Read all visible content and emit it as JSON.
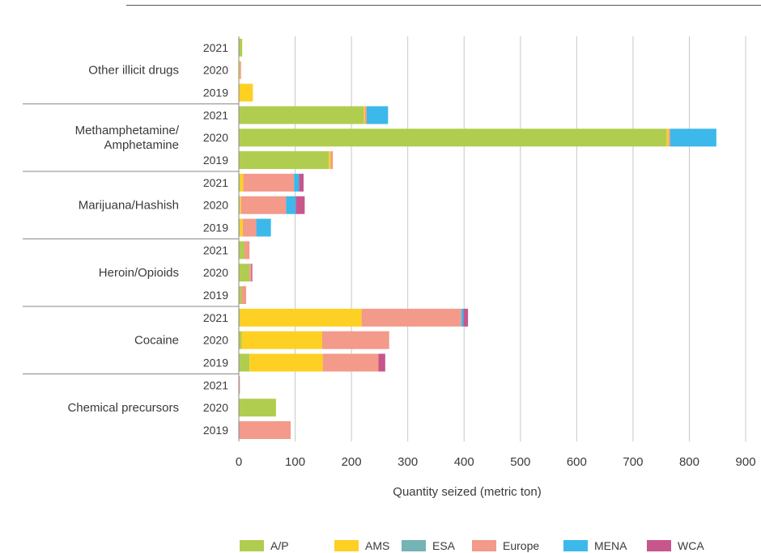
{
  "chart_data": {
    "type": "bar",
    "orientation": "horizontal",
    "stacked": true,
    "title": "",
    "xlabel": "Quantity seized (metric ton)",
    "xlim": [
      0,
      900
    ],
    "xticks": [
      0,
      100,
      200,
      300,
      400,
      500,
      600,
      700,
      800,
      900
    ],
    "grid": true,
    "legend_position": "bottom",
    "series_names": [
      "A/P",
      "AMS",
      "ESA",
      "Europe",
      "MENA",
      "WCA"
    ],
    "series_colors": [
      "#b1cd4f",
      "#fdd023",
      "#74b3b6",
      "#f39a8a",
      "#3db8ea",
      "#c7568c"
    ],
    "groups": [
      {
        "label": [
          "Other illicit drugs"
        ],
        "rows": [
          {
            "year": "2021",
            "values": [
              6,
              0,
              0,
              0,
              0,
              0
            ]
          },
          {
            "year": "2020",
            "values": [
              0,
              2,
              0,
              2,
              0,
              0
            ]
          },
          {
            "year": "2019",
            "values": [
              0,
              25,
              0,
              0,
              0,
              0
            ]
          }
        ]
      },
      {
        "label": [
          "Methamphetamine/",
          "Amphetamine"
        ],
        "rows": [
          {
            "year": "2021",
            "values": [
              222,
              2,
              0,
              3,
              38,
              0
            ]
          },
          {
            "year": "2020",
            "values": [
              760,
              3,
              0,
              3,
              82,
              0
            ]
          },
          {
            "year": "2019",
            "values": [
              160,
              3,
              0,
              4,
              0,
              0
            ]
          }
        ]
      },
      {
        "label": [
          "Marijuana/Hashish"
        ],
        "rows": [
          {
            "year": "2021",
            "values": [
              2,
              6,
              0,
              90,
              9,
              8
            ]
          },
          {
            "year": "2020",
            "values": [
              2,
              2,
              0,
              80,
              17,
              16
            ]
          },
          {
            "year": "2019",
            "values": [
              2,
              5,
              0,
              24,
              26,
              0
            ]
          }
        ]
      },
      {
        "label": [
          "Heroin/Opioids"
        ],
        "rows": [
          {
            "year": "2021",
            "values": [
              10,
              0,
              0,
              9,
              0,
              0
            ]
          },
          {
            "year": "2020",
            "values": [
              19,
              0,
              0,
              3,
              0,
              2
            ]
          },
          {
            "year": "2019",
            "values": [
              5,
              0,
              0,
              8,
              0,
              0
            ]
          }
        ]
      },
      {
        "label": [
          "Cocaine"
        ],
        "rows": [
          {
            "year": "2021",
            "values": [
              2,
              216,
              0,
              177,
              4,
              8
            ]
          },
          {
            "year": "2020",
            "values": [
              5,
              143,
              0,
              119,
              0,
              0
            ]
          },
          {
            "year": "2019",
            "values": [
              19,
              130,
              0,
              99,
              0,
              12
            ]
          }
        ]
      },
      {
        "label": [
          "Chemical precursors"
        ],
        "rows": [
          {
            "year": "2021",
            "values": [
              0,
              0,
              0,
              2,
              0,
              0
            ]
          },
          {
            "year": "2020",
            "values": [
              66,
              0,
              0,
              0,
              0,
              0
            ]
          },
          {
            "year": "2019",
            "values": [
              0,
              0,
              0,
              92,
              0,
              0
            ]
          }
        ]
      }
    ]
  }
}
